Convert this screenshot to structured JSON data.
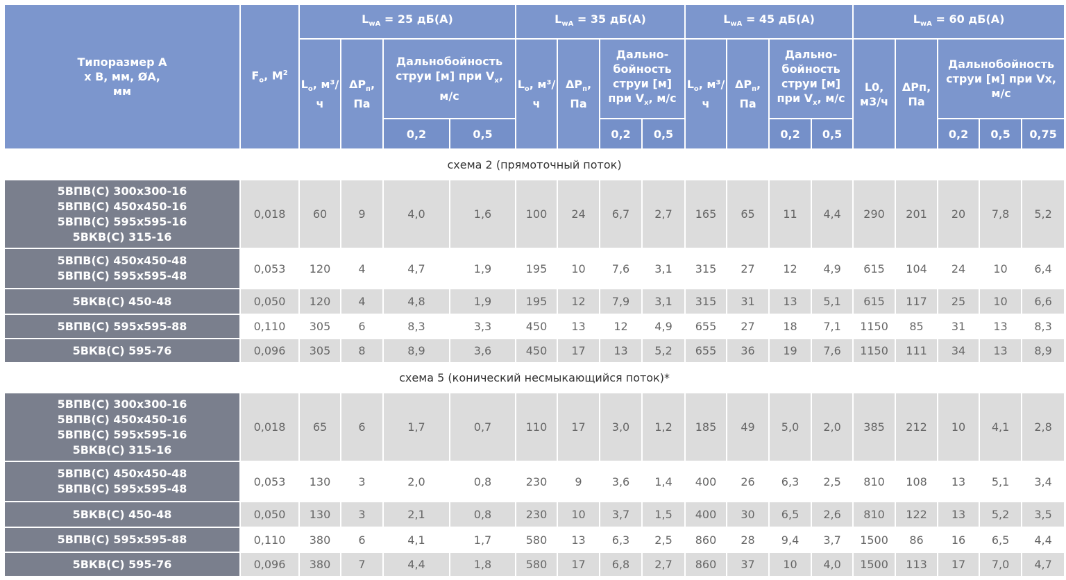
{
  "header": {
    "size": "Типоразмер А х В, мм, ØА, мм",
    "area": [
      {
        "t": "F"
      },
      {
        "sub": "o"
      },
      {
        "t": ", М"
      },
      {
        "sup": "2"
      }
    ],
    "groups": [
      {
        "title": [
          {
            "t": "L"
          },
          {
            "sub": "wA"
          },
          {
            "t": " = 25 дБ(А)"
          }
        ],
        "flow": [
          {
            "t": "L"
          },
          {
            "sub": "o"
          },
          {
            "t": ", м³/ч"
          }
        ],
        "pressure": [
          {
            "t": "ΔP"
          },
          {
            "sub": "п"
          },
          {
            "t": ", Па"
          }
        ],
        "range": [
          {
            "t": "Дальнобойность струи [м] при V"
          },
          {
            "sub": "x"
          },
          {
            "t": ", м/с"
          }
        ],
        "speeds": [
          "0,2",
          "0,5"
        ]
      },
      {
        "title": [
          {
            "t": "L"
          },
          {
            "sub": "wA"
          },
          {
            "t": " = 35 дБ(А)"
          }
        ],
        "flow": [
          {
            "t": "L"
          },
          {
            "sub": "o"
          },
          {
            "t": ", м³/ч"
          }
        ],
        "pressure": [
          {
            "t": "ΔP"
          },
          {
            "sub": "п"
          },
          {
            "t": ", Па"
          }
        ],
        "range": [
          {
            "t": "Дально-бойность струи [м] при V"
          },
          {
            "sub": "x"
          },
          {
            "t": ", м/с"
          }
        ],
        "speeds": [
          "0,2",
          "0,5"
        ]
      },
      {
        "title": [
          {
            "t": "L"
          },
          {
            "sub": "wA"
          },
          {
            "t": " = 45 дБ(А)"
          }
        ],
        "flow": [
          {
            "t": "L"
          },
          {
            "sub": "o"
          },
          {
            "t": ", м³/ч"
          }
        ],
        "pressure": [
          {
            "t": "ΔP"
          },
          {
            "sub": "п"
          },
          {
            "t": ", Па"
          }
        ],
        "range": [
          {
            "t": "Дально-бойность струи [м] при V"
          },
          {
            "sub": "x"
          },
          {
            "t": ", м/с"
          }
        ],
        "speeds": [
          "0,2",
          "0,5"
        ]
      },
      {
        "title": [
          {
            "t": "L"
          },
          {
            "sub": "wA"
          },
          {
            "t": " = 60 дБ(А)"
          }
        ],
        "flow": [
          {
            "t": "L0, м3/ч"
          }
        ],
        "pressure": [
          {
            "t": "ΔPп, Па"
          }
        ],
        "range": [
          {
            "t": "Дальнобойность струи [м] при Vx, м/с"
          }
        ],
        "speeds": [
          "0,2",
          "0,5",
          "0,75"
        ]
      }
    ]
  },
  "sections": [
    {
      "title": "схема 2 (прямоточный поток)",
      "rows": [
        {
          "names": [
            "5ВПВ(С) 300x300-16",
            "5ВПВ(С) 450x450-16",
            "5ВПВ(С) 595x595-16",
            "5ВКВ(С) 315-16"
          ],
          "cells": [
            "0,018",
            "60",
            "9",
            "4,0",
            "1,6",
            "100",
            "24",
            "6,7",
            "2,7",
            "165",
            "65",
            "11",
            "4,4",
            "290",
            "201",
            "20",
            "7,8",
            "5,2"
          ]
        },
        {
          "names": [
            "5ВПВ(С) 450x450-48",
            "5ВПВ(С) 595x595-48"
          ],
          "cells": [
            "0,053",
            "120",
            "4",
            "4,7",
            "1,9",
            "195",
            "10",
            "7,6",
            "3,1",
            "315",
            "27",
            "12",
            "4,9",
            "615",
            "104",
            "24",
            "10",
            "6,4"
          ]
        },
        {
          "names": [
            "5ВКВ(С) 450-48"
          ],
          "cells": [
            "0,050",
            "120",
            "4",
            "4,8",
            "1,9",
            "195",
            "12",
            "7,9",
            "3,1",
            "315",
            "31",
            "13",
            "5,1",
            "615",
            "117",
            "25",
            "10",
            "6,6"
          ]
        },
        {
          "names": [
            "5ВПВ(С) 595x595-88"
          ],
          "cells": [
            "0,110",
            "305",
            "6",
            "8,3",
            "3,3",
            "450",
            "13",
            "12",
            "4,9",
            "655",
            "27",
            "18",
            "7,1",
            "1150",
            "85",
            "31",
            "13",
            "8,3"
          ]
        },
        {
          "names": [
            "5ВКВ(С) 595-76"
          ],
          "cells": [
            "0,096",
            "305",
            "8",
            "8,9",
            "3,6",
            "450",
            "17",
            "13",
            "5,2",
            "655",
            "36",
            "19",
            "7,6",
            "1150",
            "111",
            "34",
            "13",
            "8,9"
          ]
        }
      ]
    },
    {
      "title": "схема 5 (конический несмыкающийся поток)*",
      "rows": [
        {
          "names": [
            "5ВПВ(С) 300x300-16",
            "5ВПВ(С) 450x450-16",
            "5ВПВ(С) 595x595-16",
            "5ВКВ(С) 315-16"
          ],
          "cells": [
            "0,018",
            "65",
            "6",
            "1,7",
            "0,7",
            "110",
            "17",
            "3,0",
            "1,2",
            "185",
            "49",
            "5,0",
            "2,0",
            "385",
            "212",
            "10",
            "4,1",
            "2,8"
          ]
        },
        {
          "names": [
            "5ВПВ(С) 450x450-48",
            "5ВПВ(С) 595x595-48"
          ],
          "cells": [
            "0,053",
            "130",
            "3",
            "2,0",
            "0,8",
            "230",
            "9",
            "3,6",
            "1,4",
            "400",
            "26",
            "6,3",
            "2,5",
            "810",
            "108",
            "13",
            "5,1",
            "3,4"
          ]
        },
        {
          "names": [
            "5ВКВ(С) 450-48"
          ],
          "cells": [
            "0,050",
            "130",
            "3",
            "2,1",
            "0,8",
            "230",
            "10",
            "3,7",
            "1,5",
            "400",
            "30",
            "6,5",
            "2,6",
            "810",
            "122",
            "13",
            "5,2",
            "3,5"
          ]
        },
        {
          "names": [
            "5ВПВ(С) 595x595-88"
          ],
          "cells": [
            "0,110",
            "380",
            "6",
            "4,1",
            "1,7",
            "580",
            "13",
            "6,3",
            "2,5",
            "860",
            "28",
            "9,4",
            "3,7",
            "1500",
            "86",
            "16",
            "6,5",
            "4,4"
          ]
        },
        {
          "names": [
            "5ВКВ(С) 595-76"
          ],
          "cells": [
            "0,096",
            "380",
            "7",
            "4,4",
            "1,8",
            "580",
            "17",
            "6,8",
            "2,7",
            "860",
            "37",
            "10",
            "4,0",
            "1500",
            "113",
            "17",
            "7,0",
            "4,7"
          ]
        }
      ]
    }
  ]
}
